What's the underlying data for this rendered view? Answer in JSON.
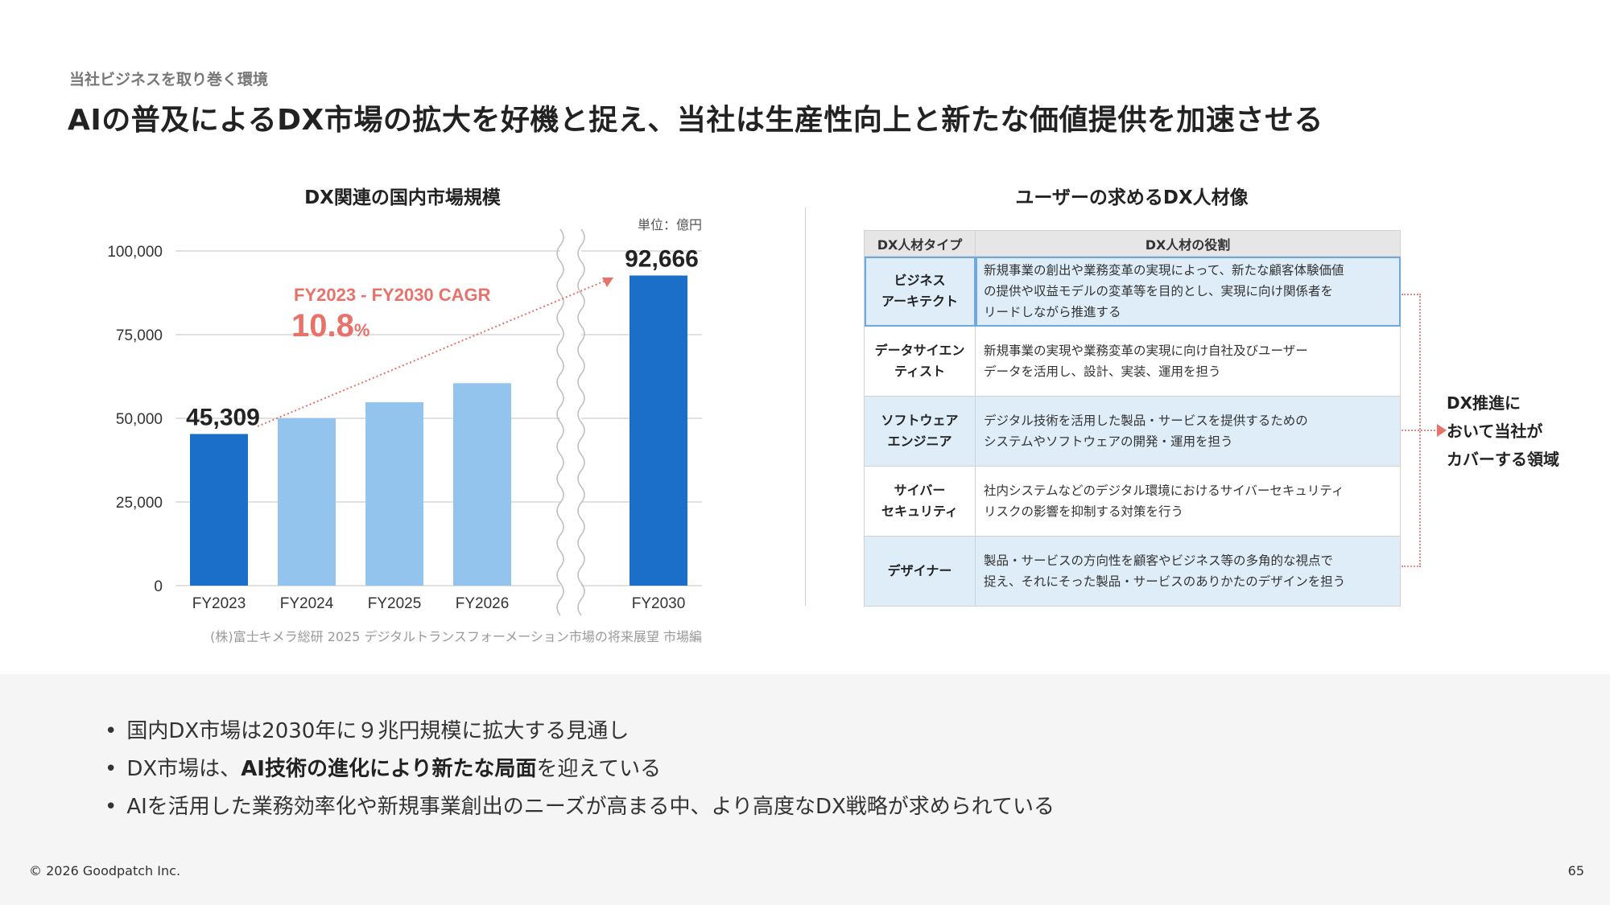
{
  "header": {
    "eyebrow": "当社ビジネスを取り巻く環境",
    "headline": "AIの普及によるDX市場の拡大を好機と捉え、当社は生産性向上と新たな価値提供を加速させる"
  },
  "chart_data": {
    "type": "bar",
    "title": "DX関連の国内市場規模",
    "unit_label": "単位：億円",
    "categories": [
      "FY2023",
      "FY2024",
      "FY2025",
      "FY2026",
      "FY2030"
    ],
    "values": [
      45309,
      50000,
      54800,
      60500,
      92666
    ],
    "value_labels": [
      "45,309",
      "",
      "",
      "",
      "92,666"
    ],
    "highlight": [
      true,
      false,
      false,
      false,
      true
    ],
    "ylim": [
      0,
      100000
    ],
    "yticks": [
      0,
      25000,
      50000,
      75000,
      100000
    ],
    "ytick_labels": [
      "0",
      "25,000",
      "50,000",
      "75,000",
      "100,000"
    ],
    "axis_break_between": [
      "FY2026",
      "FY2030"
    ],
    "grid": true,
    "annotation": {
      "label": "FY2023 - FY2030 CAGR",
      "value": "10.8",
      "unit": "%"
    },
    "source": "(株)富士キメラ総研 2025 デジタルトランスフォーメーション市場の将来展望 市場編",
    "colors": {
      "highlight": "#1b6fc8",
      "normal": "#93c4ee",
      "annotation": "#e8716a",
      "grid": "#cfcfcf"
    }
  },
  "dx_table": {
    "title": "ユーザーの求めるDX人材像",
    "headers": [
      "DX人材タイプ",
      "DX人材の役割"
    ],
    "rows": [
      {
        "type_lines": [
          "ビジネス",
          "アーキテクト"
        ],
        "role_lines": [
          "新規事業の創出や業務変革の実現によって、新たな顧客体験価値",
          "の提供や収益モデルの変革等を目的とし、実現に向け関係者を",
          "リードしながら推進する"
        ]
      },
      {
        "type_lines": [
          "データサイエン",
          "ティスト"
        ],
        "role_lines": [
          "新規事業の実現や業務変革の実現に向け自社及びユーザー",
          "データを活用し、設計、実装、運用を担う"
        ]
      },
      {
        "type_lines": [
          "ソフトウェア",
          "エンジニア"
        ],
        "role_lines": [
          "デジタル技術を活用した製品・サービスを提供するための",
          "システムやソフトウェアの開発・運用を担う"
        ]
      },
      {
        "type_lines": [
          "サイバー",
          "セキュリティ"
        ],
        "role_lines": [
          "社内システムなどのデジタル環境におけるサイバーセキュリティ",
          "リスクの影響を抑制する対策を行う"
        ]
      },
      {
        "type_lines": [
          "デザイナー"
        ],
        "role_lines": [
          "製品・サービスの方向性を顧客やビジネス等の多角的な視点で",
          "捉え、それにそった製品・サービスのありかたのデザインを担う"
        ]
      }
    ],
    "coverage_lines": [
      "DX推進に",
      "おいて当社が",
      "カバーする領域"
    ],
    "colors": {
      "highlight_row": "#deedf8",
      "bracket": "#e58a80"
    }
  },
  "bullets": {
    "b1": "国内DX市場は2030年に９兆円規模に拡大する見通し",
    "b2_pre": "DX市場は、",
    "b2_bold": "AI技術の進化により新たな局面",
    "b2_post": "を迎えている",
    "b3": "AIを活用した業務効率化や新規事業創出のニーズが高まる中、より高度なDX戦略が求められている"
  },
  "footer": {
    "copyright": "© 2026 Goodpatch Inc.",
    "page": "65"
  }
}
